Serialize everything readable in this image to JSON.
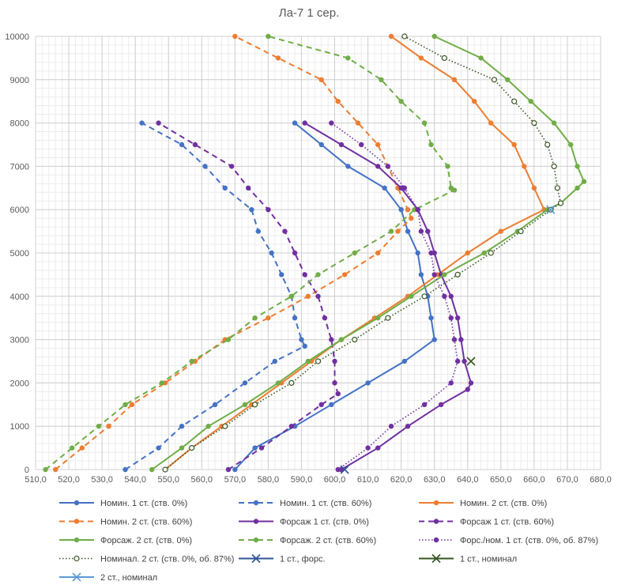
{
  "chart_data": {
    "type": "line",
    "title": "Ла-7 1 сер.",
    "xlim": [
      510,
      680
    ],
    "ylim": [
      0,
      10000
    ],
    "x_major_step": 10,
    "y_major_step": 1000,
    "x_tick_labels": [
      "510,0",
      "520,0",
      "530,0",
      "540,0",
      "550,0",
      "560,0",
      "570,0",
      "580,0",
      "590,0",
      "600,0",
      "610,0",
      "620,0",
      "630,0",
      "640,0",
      "650,0",
      "660,0",
      "670,0",
      "680,0"
    ],
    "y_tick_labels": [
      "0",
      "1000",
      "2000",
      "3000",
      "4000",
      "5000",
      "6000",
      "7000",
      "8000",
      "9000",
      "10000"
    ],
    "grid": true,
    "minor_grid": true,
    "legend_position": "bottom",
    "series": [
      {
        "name": "Номин. 1 ст. (ств. 0%)",
        "color": "#4472C4",
        "dash": "solid",
        "marker": "dot",
        "points": [
          [
            570,
            0
          ],
          [
            576,
            500
          ],
          [
            588,
            1000
          ],
          [
            599,
            1500
          ],
          [
            610,
            2000
          ],
          [
            621,
            2500
          ],
          [
            630,
            3000
          ],
          [
            629,
            3500
          ],
          [
            628,
            4000
          ],
          [
            626,
            4500
          ],
          [
            625,
            5000
          ],
          [
            622,
            5500
          ],
          [
            620,
            6000
          ],
          [
            615,
            6500
          ],
          [
            604,
            7000
          ],
          [
            596,
            7500
          ],
          [
            588,
            8000
          ]
        ]
      },
      {
        "name": "Номин. 1 ст. (ств. 60%)",
        "color": "#4472C4",
        "dash": "dashed",
        "marker": "dot",
        "points": [
          [
            537,
            0
          ],
          [
            547,
            500
          ],
          [
            554,
            1000
          ],
          [
            564,
            1500
          ],
          [
            573,
            2000
          ],
          [
            582,
            2500
          ],
          [
            591,
            2850
          ],
          [
            590,
            3000
          ],
          [
            588,
            3500
          ],
          [
            587,
            4000
          ],
          [
            584,
            4500
          ],
          [
            581,
            5000
          ],
          [
            577,
            5500
          ],
          [
            575,
            6000
          ],
          [
            567,
            6500
          ],
          [
            561,
            7000
          ],
          [
            554,
            7500
          ],
          [
            542,
            8000
          ]
        ]
      },
      {
        "name": "Номин. 2 ст. (ств. 0%)",
        "color": "#ED7D31",
        "dash": "solid",
        "marker": "dot",
        "points": [
          [
            549,
            0
          ],
          [
            557,
            500
          ],
          [
            566,
            1000
          ],
          [
            575,
            1500
          ],
          [
            584,
            2000
          ],
          [
            593,
            2500
          ],
          [
            602,
            3000
          ],
          [
            612,
            3500
          ],
          [
            622,
            4000
          ],
          [
            631,
            4500
          ],
          [
            640,
            5000
          ],
          [
            650,
            5500
          ],
          [
            663,
            6000
          ],
          [
            660,
            6500
          ],
          [
            657,
            7000
          ],
          [
            654,
            7500
          ],
          [
            647,
            8000
          ],
          [
            642,
            8500
          ],
          [
            636,
            9000
          ],
          [
            626,
            9500
          ],
          [
            617,
            10000
          ]
        ]
      },
      {
        "name": "Номин. 2 ст. (ств. 60%)",
        "color": "#ED7D31",
        "dash": "dashed",
        "marker": "dot",
        "points": [
          [
            516,
            0
          ],
          [
            524,
            500
          ],
          [
            532,
            1000
          ],
          [
            539,
            1500
          ],
          [
            549,
            2000
          ],
          [
            558,
            2500
          ],
          [
            567,
            3000
          ],
          [
            580,
            3500
          ],
          [
            592,
            4000
          ],
          [
            603,
            4500
          ],
          [
            613,
            5000
          ],
          [
            619,
            5500
          ],
          [
            623,
            5800
          ],
          [
            622,
            6000
          ],
          [
            619,
            6500
          ],
          [
            616,
            7000
          ],
          [
            613,
            7500
          ],
          [
            607,
            8000
          ],
          [
            601,
            8500
          ],
          [
            596,
            9000
          ],
          [
            583,
            9500
          ],
          [
            570,
            10000
          ]
        ]
      },
      {
        "name": "Форсаж 1 ст. (ств. 0%)",
        "color": "#7030A0",
        "dash": "solid",
        "marker": "dot",
        "points": [
          [
            602,
            0
          ],
          [
            613,
            500
          ],
          [
            622,
            1000
          ],
          [
            632,
            1500
          ],
          [
            640,
            1850
          ],
          [
            641,
            2000
          ],
          [
            639,
            2500
          ],
          [
            638,
            3000
          ],
          [
            637,
            3500
          ],
          [
            635,
            4000
          ],
          [
            632,
            4500
          ],
          [
            630,
            5000
          ],
          [
            628,
            5500
          ],
          [
            625,
            6000
          ],
          [
            620,
            6500
          ],
          [
            613,
            7000
          ],
          [
            602,
            7500
          ],
          [
            591,
            8000
          ]
        ]
      },
      {
        "name": "Форсаж 1 ст. (ств. 60%)",
        "color": "#7030A0",
        "dash": "dashed",
        "marker": "dot",
        "points": [
          [
            568,
            0
          ],
          [
            578,
            500
          ],
          [
            587,
            1000
          ],
          [
            596,
            1500
          ],
          [
            601,
            1750
          ],
          [
            600,
            2000
          ],
          [
            600,
            2500
          ],
          [
            599,
            3000
          ],
          [
            597,
            3500
          ],
          [
            595,
            4000
          ],
          [
            591,
            4500
          ],
          [
            588,
            5000
          ],
          [
            585,
            5500
          ],
          [
            580,
            6000
          ],
          [
            574,
            6500
          ],
          [
            569,
            7000
          ],
          [
            558,
            7500
          ],
          [
            547,
            8000
          ]
        ]
      },
      {
        "name": "Форсаж. 2 ст. (ств. 0%)",
        "color": "#70AD47",
        "dash": "solid",
        "marker": "dot",
        "points": [
          [
            545,
            0
          ],
          [
            554,
            500
          ],
          [
            562,
            1000
          ],
          [
            573,
            1500
          ],
          [
            583,
            2000
          ],
          [
            592,
            2500
          ],
          [
            602,
            3000
          ],
          [
            613,
            3500
          ],
          [
            623,
            4000
          ],
          [
            633,
            4500
          ],
          [
            645,
            5000
          ],
          [
            655,
            5500
          ],
          [
            664,
            6000
          ],
          [
            668,
            6150
          ],
          [
            673,
            6500
          ],
          [
            675,
            6650
          ],
          [
            673,
            7000
          ],
          [
            671,
            7500
          ],
          [
            666,
            8000
          ],
          [
            659,
            8500
          ],
          [
            652,
            9000
          ],
          [
            644,
            9500
          ],
          [
            630,
            10000
          ]
        ]
      },
      {
        "name": "Форсаж. 2 ст. (ств. 60%)",
        "color": "#70AD47",
        "dash": "dashed",
        "marker": "dot",
        "points": [
          [
            513,
            0
          ],
          [
            521,
            500
          ],
          [
            529,
            1000
          ],
          [
            537,
            1500
          ],
          [
            548,
            2000
          ],
          [
            557,
            2500
          ],
          [
            568,
            3000
          ],
          [
            576,
            3500
          ],
          [
            587,
            4000
          ],
          [
            595,
            4500
          ],
          [
            606,
            5000
          ],
          [
            617,
            5500
          ],
          [
            624,
            6000
          ],
          [
            636,
            6450
          ],
          [
            635,
            6500
          ],
          [
            634,
            7000
          ],
          [
            629,
            7500
          ],
          [
            627,
            8000
          ],
          [
            620,
            8500
          ],
          [
            614,
            9000
          ],
          [
            604,
            9500
          ],
          [
            580,
            10000
          ]
        ]
      },
      {
        "name": "Форс./ном. 1 ст. (ств. 0%, об. 87%)",
        "color": "#7030A0",
        "dash": "dotted",
        "marker": "dot",
        "points": [
          [
            601,
            0
          ],
          [
            610,
            500
          ],
          [
            617,
            1000
          ],
          [
            627,
            1500
          ],
          [
            635,
            2000
          ],
          [
            637,
            2500
          ],
          [
            636,
            3000
          ],
          [
            635,
            3500
          ],
          [
            633,
            4000
          ],
          [
            630,
            4500
          ],
          [
            629,
            5000
          ],
          [
            626,
            5500
          ],
          [
            625,
            6000
          ],
          [
            621,
            6500
          ],
          [
            616,
            7000
          ],
          [
            608,
            7500
          ],
          [
            599,
            8000
          ]
        ]
      },
      {
        "name": "Номинал. 2 ст. (ств. 0%, об. 87%)",
        "color": "#375623",
        "dash": "dotted",
        "marker": "circle",
        "points": [
          [
            549,
            0
          ],
          [
            557,
            500
          ],
          [
            567,
            1000
          ],
          [
            576,
            1500
          ],
          [
            587,
            2000
          ],
          [
            595,
            2500
          ],
          [
            606,
            3000
          ],
          [
            616,
            3500
          ],
          [
            627,
            4000
          ],
          [
            637,
            4500
          ],
          [
            647,
            5000
          ],
          [
            656,
            5500
          ],
          [
            665,
            6000
          ],
          [
            668,
            6150
          ],
          [
            667,
            6500
          ],
          [
            666,
            7000
          ],
          [
            664,
            7500
          ],
          [
            660,
            8000
          ],
          [
            654,
            8500
          ],
          [
            648,
            9000
          ],
          [
            633,
            9500
          ],
          [
            621,
            10000
          ]
        ]
      },
      {
        "name": "1 ст., форс.",
        "color": "#2F5597",
        "dash": "solid",
        "marker": "x",
        "points": [
          [
            603,
            0
          ]
        ]
      },
      {
        "name": "1 ст., номинал",
        "color": "#375623",
        "dash": "solid",
        "marker": "x",
        "points": [
          [
            641,
            2500
          ]
        ]
      },
      {
        "name": "2 ст., номинал",
        "color": "#5B9BD5",
        "dash": "solid",
        "marker": "x",
        "points": [
          [
            665,
            6000
          ]
        ]
      }
    ]
  }
}
